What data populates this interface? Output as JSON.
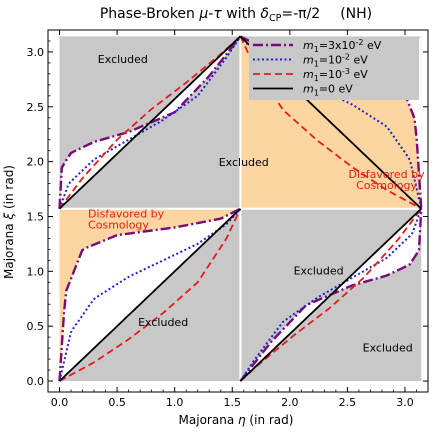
{
  "chart_data": {
    "type": "line",
    "title": {
      "prefix": "Phase-Broken ",
      "mu": "μ",
      "dash": "-",
      "tau": "τ",
      "with": " with  ",
      "delta": "δ",
      "delta_sub": "CP",
      "delta_value": "=-π/2",
      "hierarchy": "(NH)"
    },
    "xlabel": {
      "text": "Majorana ",
      "symbol": "η",
      "unit": " (in rad)"
    },
    "ylabel": {
      "text": "Majorana ",
      "symbol": "ξ",
      "unit": " (in rad)"
    },
    "xlim": [
      -0.1,
      3.2
    ],
    "ylim": [
      -0.1,
      3.2
    ],
    "x_ticks": [
      0.0,
      0.5,
      1.0,
      1.5,
      2.0,
      2.5,
      3.0
    ],
    "x_tick_labels": [
      "0.0",
      "0.5",
      "1.0",
      "1.5",
      "2.0",
      "2.5",
      "3.0"
    ],
    "y_ticks": [
      0.0,
      0.5,
      1.0,
      1.5,
      2.0,
      2.5,
      3.0
    ],
    "y_tick_labels": [
      "0.0",
      "0.5",
      "1.0",
      "1.5",
      "2.0",
      "2.5",
      "3.0"
    ],
    "grid": false,
    "legend_position": "top-right",
    "colors": {
      "excluded": "#c8c8c8",
      "disfavored": "#fdd5a0",
      "allowed": "#ffffff",
      "divider": "#ffffff"
    },
    "series": [
      {
        "key": "m1_3e-2",
        "label_main": "m",
        "label_sub": "1",
        "label_rest": "=3x10",
        "label_sup": "-2",
        "label_unit": " eV",
        "color": "#7a0a7a",
        "style": "dashdot",
        "upper_sag": [
          0.02,
          0.4,
          1.15,
          1.35,
          1.42,
          1.5,
          1.55,
          1.57
        ],
        "lower_sag": [
          0.02,
          0.4,
          1.15,
          1.35,
          1.42,
          1.5,
          1.55,
          1.57
        ]
      },
      {
        "key": "m1_1e-2",
        "label_main": "m",
        "label_sub": "1",
        "label_rest": "=10",
        "label_sup": "-2",
        "label_unit": " eV",
        "color": "#1f22d0",
        "style": "dotted",
        "upper_sag": [
          0.02,
          0.45,
          0.7,
          0.85,
          0.97,
          1.1,
          1.3,
          1.57
        ],
        "lower_sag": [
          0.02,
          0.45,
          0.7,
          0.85,
          0.97,
          1.1,
          1.3,
          1.57
        ]
      },
      {
        "key": "m1_1e-3",
        "label_main": "m",
        "label_sub": "1",
        "label_rest": "=10",
        "label_sup": "-3",
        "label_unit": " eV",
        "color": "#e51b1b",
        "style": "dashed",
        "upper_sag": [
          0.0,
          0.1,
          0.2,
          0.3,
          0.4,
          0.5,
          0.6,
          0.7
        ],
        "lower_sag": [
          0.0,
          0.1,
          0.2,
          0.3,
          0.4,
          0.5,
          0.6,
          0.7
        ]
      },
      {
        "key": "m1_0",
        "label_main": "m",
        "label_sub": "1",
        "label_rest": "=0 eV",
        "label_sup": "",
        "label_unit": "",
        "color": "#000000",
        "style": "solid",
        "upper_sag": [
          0.0,
          0.0,
          0.0,
          0.0,
          0.0,
          0.0,
          0.0,
          0.0
        ],
        "lower_sag": [
          0.0,
          0.0,
          0.0,
          0.0,
          0.0,
          0.0,
          0.0,
          0.0
        ]
      }
    ],
    "curve_shape": {
      "m1_3e-2": {
        "xi_at_eta": [
          [
            0.0,
            0.0
          ],
          [
            0.05,
            0.8
          ],
          [
            0.2,
            1.2
          ],
          [
            0.5,
            1.33
          ],
          [
            1.0,
            1.4
          ],
          [
            1.4,
            1.48
          ],
          [
            1.55,
            1.56
          ],
          [
            1.5708,
            1.5708
          ]
        ],
        "upper": [
          [
            0.0,
            1.5708
          ],
          [
            0.02,
            1.95
          ],
          [
            0.1,
            2.08
          ],
          [
            0.3,
            2.18
          ],
          [
            0.6,
            2.27
          ],
          [
            1.0,
            2.45
          ],
          [
            1.3,
            2.78
          ],
          [
            1.5708,
            3.1416
          ]
        ]
      },
      "m1_1e-2": {
        "xi_at_eta": [
          [
            0.0,
            0.0
          ],
          [
            0.1,
            0.45
          ],
          [
            0.3,
            0.75
          ],
          [
            0.6,
            0.95
          ],
          [
            0.9,
            1.1
          ],
          [
            1.2,
            1.25
          ],
          [
            1.45,
            1.43
          ],
          [
            1.5708,
            1.5708
          ]
        ],
        "upper": [
          [
            0.0,
            1.5708
          ],
          [
            0.08,
            1.8
          ],
          [
            0.3,
            2.02
          ],
          [
            0.6,
            2.2
          ],
          [
            0.9,
            2.38
          ],
          [
            1.2,
            2.6
          ],
          [
            1.45,
            2.95
          ],
          [
            1.5708,
            3.1416
          ]
        ]
      },
      "m1_1e-3": {
        "xi_at_eta": [
          [
            0.0,
            0.0
          ],
          [
            0.3,
            0.17
          ],
          [
            0.6,
            0.38
          ],
          [
            0.9,
            0.62
          ],
          [
            1.2,
            0.9
          ],
          [
            1.45,
            1.3
          ],
          [
            1.5708,
            1.5708
          ]
        ],
        "upper": [
          [
            0.0,
            1.5708
          ],
          [
            0.2,
            1.85
          ],
          [
            0.5,
            2.2
          ],
          [
            0.8,
            2.48
          ],
          [
            1.1,
            2.72
          ],
          [
            1.4,
            2.98
          ],
          [
            1.5708,
            3.1416
          ]
        ]
      },
      "m1_0": {
        "xi_at_eta": [
          [
            0.0,
            0.0
          ],
          [
            1.5708,
            1.5708
          ]
        ],
        "upper": [
          [
            0.0,
            1.5708
          ],
          [
            1.5708,
            3.1416
          ]
        ]
      }
    },
    "annotations": {
      "excluded_labels": [
        "Excluded",
        "Excluded",
        "Excluded",
        "Excluded",
        "Excluded"
      ],
      "disfavored_labels": [
        {
          "line1": "Disfavored by",
          "line2": "Cosmology"
        },
        {
          "line1": "Disfavored by",
          "line2": "Cosmology"
        }
      ]
    }
  }
}
